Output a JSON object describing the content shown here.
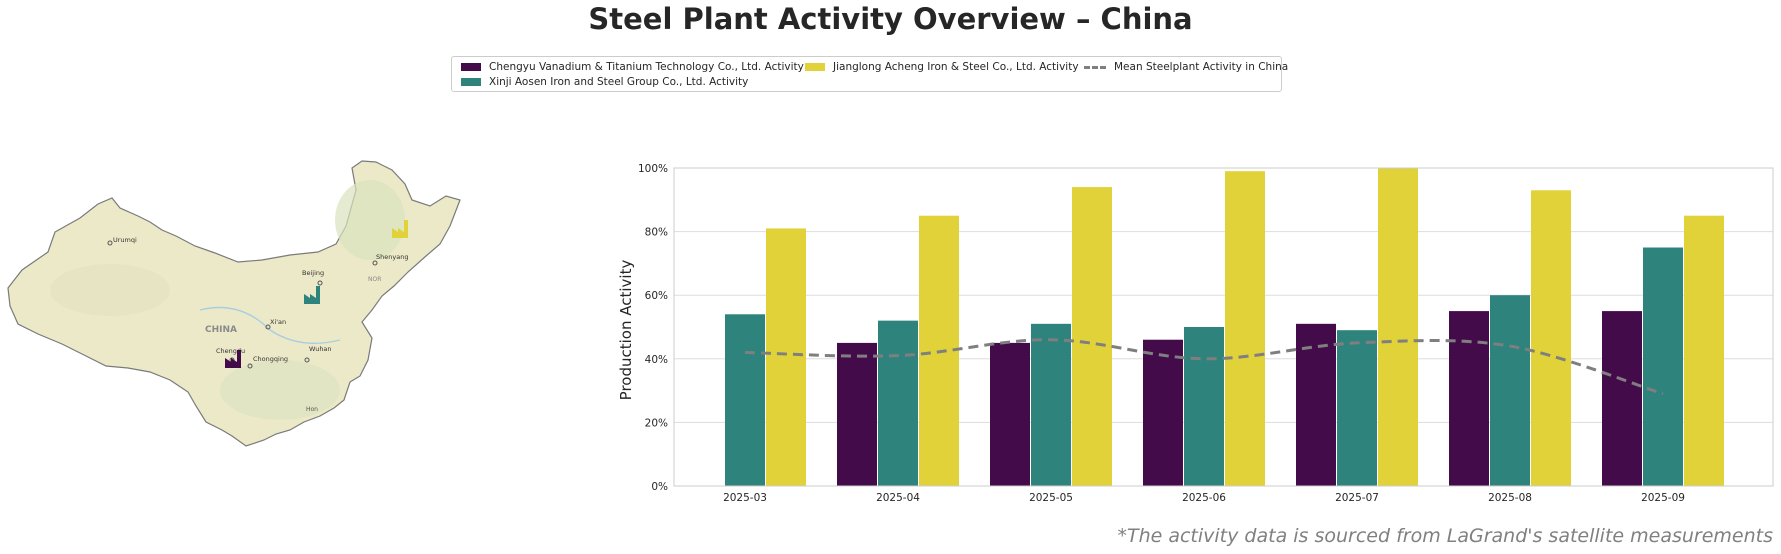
{
  "title": "Steel Plant Activity Overview – China",
  "footnote": "*The activity data is sourced from LaGrand's satellite measurements",
  "legend": {
    "series1": "Chengyu Vanadium & Titanium Technology Co., Ltd. Activity",
    "series2": "Xinji Aosen Iron and Steel Group Co., Ltd. Activity",
    "series3": "Jianglong Acheng Iron & Steel Co., Ltd. Activity",
    "mean": "Mean Steelplant Activity in China"
  },
  "map": {
    "labels": {
      "urumqi": "Urumqi",
      "beijing": "Beijing",
      "shenyang": "Shenyang",
      "xian": "Xi'an",
      "china": "CHINA",
      "chengdu": "Chengdu",
      "chongqing": "Chongqing",
      "wuhan": "Wuhan",
      "nor": "NOR",
      "hk": "Hon"
    },
    "colors": {
      "land": "#ece9c8",
      "border": "#7a7a7a"
    }
  },
  "colors": {
    "series1": "#440b4b",
    "series2": "#2e837d",
    "series3": "#e2d23a",
    "mean": "#7f7f7f",
    "grid": "#dddddd"
  },
  "chart_data": {
    "type": "bar",
    "title": "",
    "xlabel": "",
    "ylabel": "Production Activity",
    "ylim": [
      0,
      100
    ],
    "yticks": [
      "0%",
      "20%",
      "40%",
      "60%",
      "80%",
      "100%"
    ],
    "grid": "horizontal",
    "categories": [
      "2025-03",
      "2025-04",
      "2025-05",
      "2025-06",
      "2025-07",
      "2025-08",
      "2025-09"
    ],
    "series": [
      {
        "name": "Chengyu Vanadium & Titanium Technology Co., Ltd. Activity",
        "values": [
          null,
          45,
          45,
          46,
          51,
          55,
          55
        ]
      },
      {
        "name": "Xinji Aosen Iron and Steel Group Co., Ltd. Activity",
        "values": [
          54,
          52,
          51,
          50,
          49,
          60,
          75
        ]
      },
      {
        "name": "Jianglong Acheng Iron & Steel Co., Ltd. Activity",
        "values": [
          81,
          85,
          94,
          99,
          100,
          93,
          85
        ]
      }
    ],
    "mean_line": {
      "name": "Mean Steelplant Activity in China",
      "values": [
        42,
        41,
        46,
        40,
        45,
        44,
        29
      ]
    }
  }
}
